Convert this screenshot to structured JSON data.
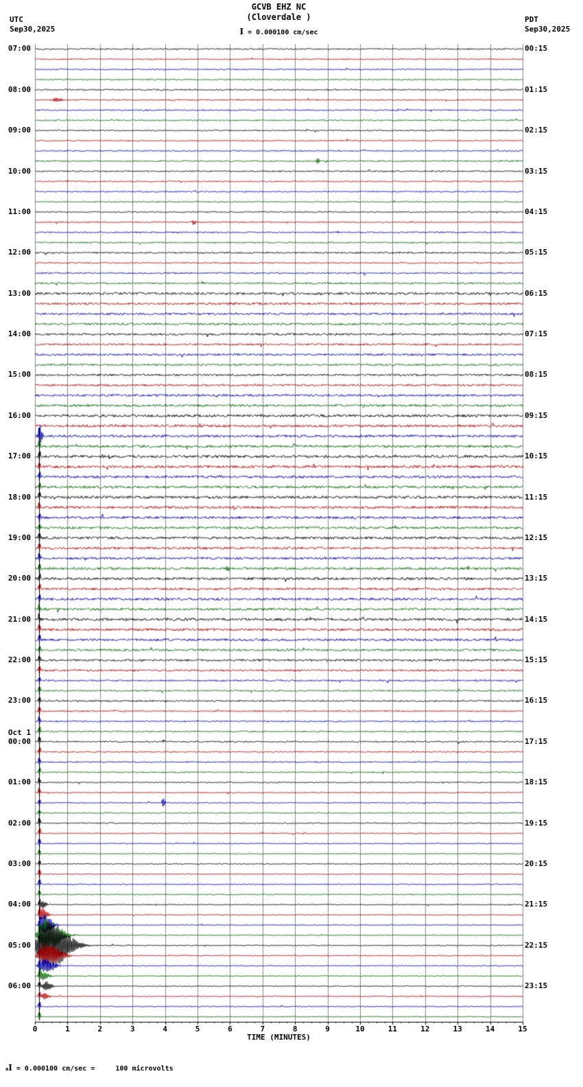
{
  "header": {
    "title": "GCVB EHZ NC",
    "subtitle": "(Cloverdale )",
    "left_tz": "UTC",
    "left_date": "Sep30,2025",
    "right_tz": "PDT",
    "right_date": "Sep30,2025",
    "scale_glyph": "I",
    "scale_label": " = 0.000100 cm/sec"
  },
  "footer": {
    "prefix": "a",
    "glyph": "I",
    "note": " = 0.000100 cm/sec =     100 microvolts"
  },
  "chart_data": {
    "type": "line",
    "subtype": "helicorder-seismogram",
    "station": "GCVB EHZ NC",
    "location": "Cloverdale",
    "xlabel": "TIME (MINUTES)",
    "x_range": [
      0,
      15
    ],
    "x_ticks": [
      "0",
      "1",
      "2",
      "3",
      "4",
      "5",
      "6",
      "7",
      "8",
      "9",
      "10",
      "11",
      "12",
      "13",
      "14",
      "15"
    ],
    "rows": 96,
    "lines_per_hour": 4,
    "minutes_per_line": 15,
    "trace_colors": [
      "#000000",
      "#b30000",
      "#0000b3",
      "#006600"
    ],
    "layout": {
      "grid": true,
      "grid_color": "#888888",
      "axis_color": "#000000",
      "background": "#ffffff"
    },
    "left_labels": [
      {
        "row": 0,
        "text": "07:00"
      },
      {
        "row": 4,
        "text": "08:00"
      },
      {
        "row": 8,
        "text": "09:00"
      },
      {
        "row": 12,
        "text": "10:00"
      },
      {
        "row": 16,
        "text": "11:00"
      },
      {
        "row": 20,
        "text": "12:00"
      },
      {
        "row": 24,
        "text": "13:00"
      },
      {
        "row": 28,
        "text": "14:00"
      },
      {
        "row": 32,
        "text": "15:00"
      },
      {
        "row": 36,
        "text": "16:00"
      },
      {
        "row": 40,
        "text": "17:00"
      },
      {
        "row": 44,
        "text": "18:00"
      },
      {
        "row": 48,
        "text": "19:00"
      },
      {
        "row": 52,
        "text": "20:00"
      },
      {
        "row": 56,
        "text": "21:00"
      },
      {
        "row": 60,
        "text": "22:00"
      },
      {
        "row": 64,
        "text": "23:00"
      },
      {
        "row": 68,
        "text": "00:00",
        "pre": "Oct 1"
      },
      {
        "row": 72,
        "text": "01:00"
      },
      {
        "row": 76,
        "text": "02:00"
      },
      {
        "row": 80,
        "text": "03:00"
      },
      {
        "row": 84,
        "text": "04:00"
      },
      {
        "row": 88,
        "text": "05:00"
      },
      {
        "row": 92,
        "text": "06:00"
      }
    ],
    "right_labels": [
      {
        "row": 0,
        "text": "00:15"
      },
      {
        "row": 4,
        "text": "01:15"
      },
      {
        "row": 8,
        "text": "02:15"
      },
      {
        "row": 12,
        "text": "03:15"
      },
      {
        "row": 16,
        "text": "04:15"
      },
      {
        "row": 20,
        "text": "05:15"
      },
      {
        "row": 24,
        "text": "06:15"
      },
      {
        "row": 28,
        "text": "07:15"
      },
      {
        "row": 32,
        "text": "08:15"
      },
      {
        "row": 36,
        "text": "09:15"
      },
      {
        "row": 40,
        "text": "10:15"
      },
      {
        "row": 44,
        "text": "11:15"
      },
      {
        "row": 48,
        "text": "12:15"
      },
      {
        "row": 52,
        "text": "13:15"
      },
      {
        "row": 56,
        "text": "14:15"
      },
      {
        "row": 60,
        "text": "15:15"
      },
      {
        "row": 64,
        "text": "16:15"
      },
      {
        "row": 68,
        "text": "17:15"
      },
      {
        "row": 72,
        "text": "18:15"
      },
      {
        "row": 76,
        "text": "19:15"
      },
      {
        "row": 80,
        "text": "20:15"
      },
      {
        "row": 84,
        "text": "21:15"
      },
      {
        "row": 88,
        "text": "22:15"
      },
      {
        "row": 92,
        "text": "23:15"
      }
    ],
    "row_noise": [
      1.0,
      0.9,
      0.9,
      0.9,
      1.0,
      0.9,
      0.9,
      0.9,
      0.9,
      0.9,
      0.9,
      1.0,
      1.0,
      0.9,
      0.9,
      0.9,
      0.9,
      0.9,
      1.0,
      1.0,
      1.1,
      1.0,
      1.1,
      1.2,
      1.7,
      1.6,
      1.5,
      1.5,
      1.5,
      1.4,
      1.5,
      1.4,
      1.4,
      1.5,
      1.6,
      1.7,
      1.9,
      1.8,
      1.8,
      1.8,
      2.0,
      1.9,
      1.8,
      1.8,
      1.9,
      1.8,
      1.8,
      1.7,
      1.8,
      1.7,
      1.7,
      1.7,
      1.8,
      1.7,
      1.8,
      1.7,
      1.9,
      1.8,
      1.7,
      1.6,
      1.5,
      1.4,
      1.2,
      1.1,
      1.1,
      1.0,
      1.0,
      1.0,
      1.0,
      0.9,
      0.9,
      0.9,
      0.8,
      0.8,
      0.8,
      0.8,
      0.8,
      0.7,
      0.7,
      0.7,
      0.7,
      0.7,
      0.7,
      0.7,
      0.7,
      0.7,
      0.7,
      0.7,
      0.7,
      0.7,
      0.7,
      0.7,
      0.7,
      0.7,
      0.7,
      0.7
    ],
    "events": [
      {
        "row": 5,
        "minute": 0.65,
        "amp": 3,
        "width": 0.15
      },
      {
        "row": 11,
        "minute": 8.67,
        "amp": 5,
        "width": 0.06
      },
      {
        "row": 17,
        "minute": 4.85,
        "amp": 5,
        "width": 0.05
      },
      {
        "row": 38,
        "minute": 0.13,
        "amp": 16,
        "width": 0.06
      },
      {
        "row": 51,
        "minute": 5.9,
        "amp": 3.5,
        "width": 0.08
      },
      {
        "row": 74,
        "minute": 3.92,
        "amp": 7,
        "width": 0.05
      },
      {
        "row": 84,
        "minute": 0.2,
        "amp": 6,
        "width": 0.1
      },
      {
        "row": 85,
        "minute": 0.2,
        "amp": 10,
        "width": 0.12
      },
      {
        "row": 86,
        "minute": 0.25,
        "amp": 16,
        "width": 0.2
      },
      {
        "row": 87,
        "minute": 0.3,
        "amp": 26,
        "width": 0.35
      },
      {
        "row": 88,
        "minute": 0.35,
        "amp": 40,
        "width": 0.5
      },
      {
        "row": 89,
        "minute": 0.3,
        "amp": 18,
        "width": 0.35
      },
      {
        "row": 90,
        "minute": 0.25,
        "amp": 10,
        "width": 0.25
      },
      {
        "row": 91,
        "minute": 0.2,
        "amp": 7,
        "width": 0.15
      },
      {
        "row": 92,
        "minute": 0.3,
        "amp": 7,
        "width": 0.15
      },
      {
        "row": 93,
        "minute": 0.25,
        "amp": 5,
        "width": 0.12
      }
    ],
    "artifact_line": {
      "start_row": 38,
      "end_row": 95,
      "minute": 0.13,
      "amp": 7
    }
  }
}
